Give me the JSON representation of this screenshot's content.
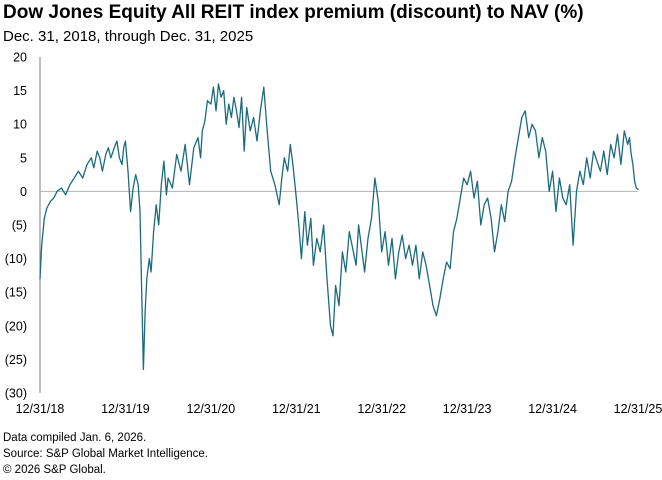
{
  "title": "Dow Jones Equity All REIT index premium (discount) to NAV (%)",
  "subtitle": "Dec. 31, 2018, through Dec. 31, 2025",
  "notes": [
    "Data compiled Jan. 6, 2026.",
    "Source: S&P Global Market Intelligence.",
    "© 2026 S&P Global."
  ],
  "colors": {
    "line": "#1a6b80",
    "zero_line": "#b3b3b3",
    "text": "#000000"
  },
  "chart_data": {
    "type": "line",
    "title": "Dow Jones Equity All REIT index premium (discount) to NAV (%)",
    "subtitle": "Dec. 31, 2018, through Dec. 31, 2025",
    "xlabel": "",
    "ylabel": "",
    "ylim": [
      -30,
      20
    ],
    "xlim": [
      2019.0,
      2026.0
    ],
    "grid": false,
    "yticks": [
      20,
      15,
      10,
      5,
      0,
      -5,
      -10,
      -15,
      -20,
      -25,
      -30
    ],
    "ytick_labels": [
      "20",
      "15",
      "10",
      "5",
      "0",
      "(5)",
      "(10)",
      "(15)",
      "(20)",
      "(25)",
      "(30)"
    ],
    "xtick_positions": [
      2019.0,
      2020.0,
      2021.0,
      2022.0,
      2023.0,
      2024.0,
      2025.0,
      2026.0
    ],
    "xtick_labels": [
      "12/31/18",
      "12/31/19",
      "12/31/20",
      "12/31/21",
      "12/31/22",
      "12/31/23",
      "12/31/24",
      "12/31/25"
    ],
    "series": [
      {
        "name": "Premium (discount) to NAV",
        "x": [
          2019.0,
          2019.02,
          2019.05,
          2019.08,
          2019.12,
          2019.16,
          2019.2,
          2019.25,
          2019.3,
          2019.35,
          2019.4,
          2019.45,
          2019.5,
          2019.55,
          2019.6,
          2019.63,
          2019.67,
          2019.7,
          2019.73,
          2019.77,
          2019.8,
          2019.83,
          2019.87,
          2019.9,
          2019.93,
          2019.96,
          2019.98,
          2020.0,
          2020.03,
          2020.06,
          2020.09,
          2020.12,
          2020.15,
          2020.17,
          2020.19,
          2020.21,
          2020.23,
          2020.25,
          2020.28,
          2020.3,
          2020.33,
          2020.36,
          2020.39,
          2020.42,
          2020.45,
          2020.48,
          2020.5,
          2020.55,
          2020.6,
          2020.65,
          2020.7,
          2020.75,
          2020.8,
          2020.85,
          2020.88,
          2020.9,
          2020.93,
          2020.96,
          2021.0,
          2021.03,
          2021.06,
          2021.09,
          2021.12,
          2021.15,
          2021.18,
          2021.21,
          2021.24,
          2021.27,
          2021.3,
          2021.33,
          2021.36,
          2021.39,
          2021.42,
          2021.46,
          2021.5,
          2021.54,
          2021.58,
          2021.62,
          2021.66,
          2021.7,
          2021.75,
          2021.8,
          2021.83,
          2021.86,
          2021.9,
          2021.93,
          2021.96,
          2022.0,
          2022.03,
          2022.06,
          2022.1,
          2022.13,
          2022.17,
          2022.2,
          2022.24,
          2022.28,
          2022.32,
          2022.36,
          2022.4,
          2022.43,
          2022.46,
          2022.5,
          2022.54,
          2022.58,
          2022.62,
          2022.66,
          2022.7,
          2022.73,
          2022.76,
          2022.8,
          2022.84,
          2022.88,
          2022.92,
          2022.96,
          2023.0,
          2023.04,
          2023.08,
          2023.12,
          2023.16,
          2023.2,
          2023.24,
          2023.28,
          2023.32,
          2023.36,
          2023.4,
          2023.44,
          2023.48,
          2023.52,
          2023.56,
          2023.6,
          2023.64,
          2023.68,
          2023.72,
          2023.76,
          2023.8,
          2023.84,
          2023.88,
          2023.92,
          2023.96,
          2024.0,
          2024.04,
          2024.08,
          2024.12,
          2024.16,
          2024.2,
          2024.24,
          2024.28,
          2024.32,
          2024.36,
          2024.4,
          2024.44,
          2024.48,
          2024.52,
          2024.56,
          2024.6,
          2024.64,
          2024.68,
          2024.72,
          2024.76,
          2024.8,
          2024.84,
          2024.88,
          2024.92,
          2024.96,
          2025.0,
          2025.04,
          2025.08,
          2025.12,
          2025.16,
          2025.2,
          2025.24,
          2025.28,
          2025.32,
          2025.36,
          2025.4,
          2025.44,
          2025.48,
          2025.52,
          2025.56,
          2025.6,
          2025.64,
          2025.68,
          2025.72,
          2025.76,
          2025.8,
          2025.84,
          2025.88,
          2025.9,
          2025.92,
          2025.94,
          2025.96,
          2025.98,
          2026.0
        ],
        "values": [
          -13.0,
          -8.0,
          -4.0,
          -2.5,
          -1.5,
          -1.0,
          0.0,
          0.5,
          -0.5,
          1.0,
          2.0,
          3.0,
          2.0,
          4.0,
          5.0,
          3.5,
          6.0,
          5.0,
          3.0,
          5.5,
          6.5,
          5.0,
          6.5,
          7.5,
          5.0,
          4.0,
          6.5,
          7.5,
          3.0,
          -3.0,
          0.5,
          2.5,
          1.0,
          -3.0,
          -15.0,
          -26.5,
          -18.0,
          -13.0,
          -10.0,
          -12.0,
          -6.0,
          -2.0,
          -5.0,
          1.0,
          4.5,
          -0.5,
          2.0,
          0.5,
          5.5,
          3.0,
          7.0,
          1.0,
          6.5,
          8.0,
          5.0,
          9.0,
          10.5,
          13.5,
          13.0,
          15.5,
          12.0,
          16.0,
          14.0,
          15.0,
          10.0,
          13.0,
          11.0,
          14.0,
          12.0,
          9.5,
          14.0,
          6.0,
          12.5,
          9.0,
          11.0,
          7.5,
          12.0,
          15.5,
          9.0,
          3.0,
          1.0,
          -2.0,
          2.0,
          5.0,
          3.0,
          7.0,
          4.0,
          -1.0,
          -5.0,
          -10.0,
          -3.0,
          -8.0,
          -4.0,
          -11.0,
          -7.0,
          -9.0,
          -5.0,
          -13.0,
          -20.0,
          -21.5,
          -14.0,
          -17.0,
          -9.0,
          -12.0,
          -6.0,
          -8.5,
          -11.0,
          -5.0,
          -8.0,
          -12.0,
          -7.0,
          -4.0,
          2.0,
          -1.5,
          -9.0,
          -6.0,
          -11.0,
          -7.0,
          -13.0,
          -9.0,
          -6.5,
          -10.0,
          -8.0,
          -11.0,
          -8.0,
          -13.0,
          -9.0,
          -11.0,
          -14.0,
          -17.0,
          -18.5,
          -16.0,
          -13.0,
          -10.5,
          -11.5,
          -6.0,
          -4.0,
          -1.0,
          2.0,
          1.0,
          3.0,
          -1.0,
          1.5,
          -5.0,
          -2.0,
          -1.0,
          -4.0,
          -9.0,
          -6.0,
          -2.0,
          -4.5,
          0.0,
          1.5,
          5.0,
          8.0,
          11.0,
          12.0,
          8.0,
          10.0,
          9.0,
          5.0,
          8.0,
          6.0,
          0.0,
          3.0,
          -3.0,
          2.0,
          -1.0,
          -2.0,
          1.0,
          -8.0,
          0.0,
          3.0,
          1.0,
          5.0,
          2.0,
          6.0,
          4.5,
          3.0,
          6.0,
          2.5,
          7.0,
          5.0,
          8.5,
          4.0,
          9.0,
          7.0,
          8.0,
          5.5,
          4.0,
          1.5,
          0.5,
          0.3
        ]
      }
    ]
  }
}
